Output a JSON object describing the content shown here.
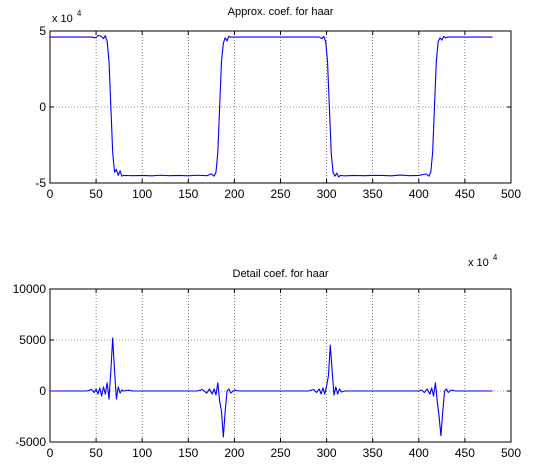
{
  "figure": {
    "background": "#ffffff",
    "line_color": "#0000ff",
    "grid_color": "#000000"
  },
  "chart_data": [
    {
      "type": "line",
      "title": "Approx. coef. for haar",
      "xlabel": "",
      "ylabel": "",
      "exponent_base": "x 10",
      "exponent_power": "4",
      "xlim": [
        0,
        500
      ],
      "ylim": [
        -50000,
        50000
      ],
      "xticks": [
        "0",
        "50",
        "100",
        "150",
        "200",
        "250",
        "300",
        "350",
        "400",
        "450",
        "500"
      ],
      "yticks": [
        "-5",
        "0",
        "5"
      ],
      "grid": true,
      "series": [
        {
          "x": [
            0,
            45,
            50,
            52,
            55,
            58,
            60,
            62,
            64,
            66,
            68,
            70,
            72,
            74,
            76,
            78,
            80,
            90,
            100,
            110,
            120,
            130,
            140,
            150,
            160,
            170,
            175,
            178,
            180,
            182,
            184,
            186,
            188,
            190,
            192,
            194,
            196,
            200,
            250,
            292,
            295,
            297,
            299,
            301,
            303,
            305,
            307,
            309,
            311,
            313,
            315,
            320,
            330,
            340,
            350,
            360,
            370,
            380,
            390,
            400,
            408,
            411,
            413,
            415,
            417,
            419,
            421,
            423,
            425,
            427,
            429,
            431,
            434,
            440,
            470,
            480
          ],
          "y": [
            46000,
            46000,
            45500,
            47000,
            46800,
            45000,
            47000,
            43000,
            30000,
            0,
            -30000,
            -43000,
            -41000,
            -45000,
            -42000,
            -45500,
            -45000,
            -45200,
            -45000,
            -45300,
            -44900,
            -45200,
            -45000,
            -45300,
            -44900,
            -45200,
            -44000,
            -45500,
            -43000,
            -30000,
            0,
            30000,
            42000,
            45500,
            43500,
            46500,
            46000,
            46000,
            46000,
            46000,
            45000,
            46500,
            43000,
            30000,
            0,
            -30000,
            -43000,
            -45500,
            -43500,
            -46000,
            -45000,
            -45300,
            -45000,
            -45200,
            -45000,
            -45000,
            -45300,
            -44800,
            -45200,
            -45000,
            -44000,
            -45500,
            -43000,
            -30000,
            0,
            30000,
            43000,
            45500,
            44000,
            46500,
            45500,
            46000,
            46000,
            46000,
            46000,
            46000
          ]
        }
      ]
    },
    {
      "type": "line",
      "title": "Detail coef. for haar",
      "xlabel": "",
      "ylabel": "",
      "exponent_base": "x 10",
      "exponent_power": "4",
      "xlim": [
        0,
        500
      ],
      "ylim": [
        -5000,
        10000
      ],
      "xticks": [
        "0",
        "50",
        "100",
        "150",
        "200",
        "250",
        "300",
        "350",
        "400",
        "450",
        "500"
      ],
      "yticks": [
        "-5000",
        "0",
        "5000",
        "10000"
      ],
      "grid": true,
      "series": [
        {
          "x": [
            0,
            40,
            45,
            48,
            50,
            52,
            54,
            56,
            58,
            60,
            62,
            64,
            66,
            68,
            70,
            72,
            74,
            76,
            78,
            80,
            85,
            90,
            120,
            160,
            165,
            170,
            173,
            176,
            178,
            180,
            182,
            184,
            186,
            188,
            190,
            192,
            194,
            196,
            200,
            205,
            210,
            240,
            280,
            286,
            289,
            292,
            294,
            296,
            298,
            300,
            302,
            304,
            306,
            308,
            310,
            312,
            314,
            316,
            320,
            325,
            360,
            400,
            403,
            406,
            409,
            412,
            414,
            416,
            418,
            420,
            422,
            424,
            426,
            428,
            430,
            432,
            435,
            440,
            445,
            480
          ],
          "y": [
            0,
            0,
            150,
            -150,
            200,
            -300,
            300,
            -500,
            400,
            -300,
            800,
            -800,
            2000,
            5200,
            2000,
            -800,
            400,
            -200,
            100,
            0,
            80,
            0,
            0,
            0,
            150,
            -200,
            200,
            -300,
            200,
            -400,
            800,
            -1000,
            -2000,
            -4500,
            -2000,
            0,
            200,
            -200,
            100,
            0,
            0,
            0,
            0,
            150,
            -150,
            200,
            -300,
            300,
            -300,
            500,
            1500,
            4500,
            2000,
            -400,
            400,
            -300,
            200,
            -100,
            0,
            0,
            0,
            0,
            100,
            -150,
            200,
            -300,
            300,
            -500,
            800,
            -1000,
            -2500,
            -4400,
            -2000,
            0,
            200,
            -150,
            100,
            0,
            0,
            0
          ]
        }
      ]
    }
  ]
}
